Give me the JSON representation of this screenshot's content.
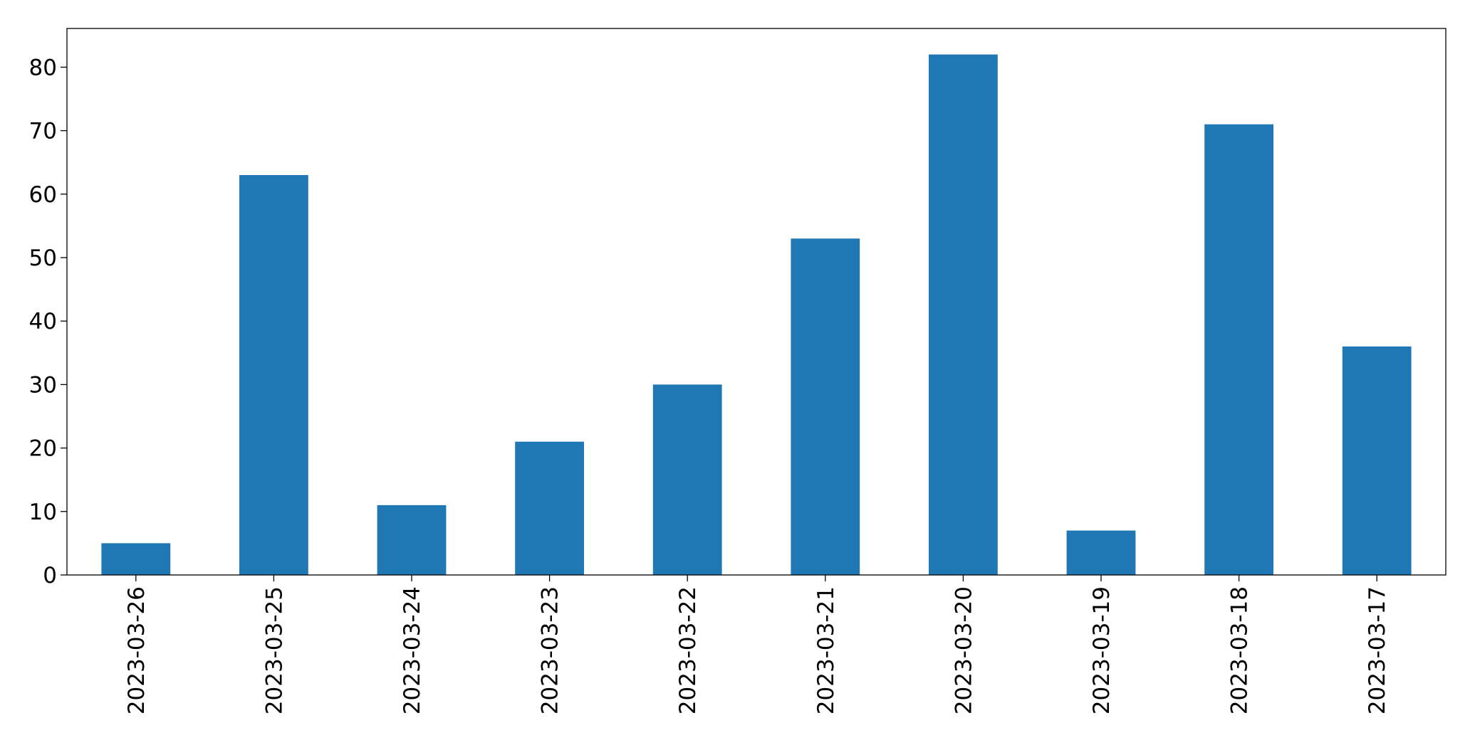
{
  "chart_data": {
    "type": "bar",
    "categories": [
      "2023-03-26",
      "2023-03-25",
      "2023-03-24",
      "2023-03-23",
      "2023-03-22",
      "2023-03-21",
      "2023-03-20",
      "2023-03-19",
      "2023-03-18",
      "2023-03-17"
    ],
    "values": [
      5,
      63,
      11,
      21,
      30,
      53,
      82,
      7,
      71,
      36
    ],
    "color": "#1f77b4",
    "ylim": [
      0,
      86.1
    ],
    "yticks": [
      0,
      10,
      20,
      30,
      40,
      50,
      60,
      70,
      80
    ],
    "grid": false
  }
}
